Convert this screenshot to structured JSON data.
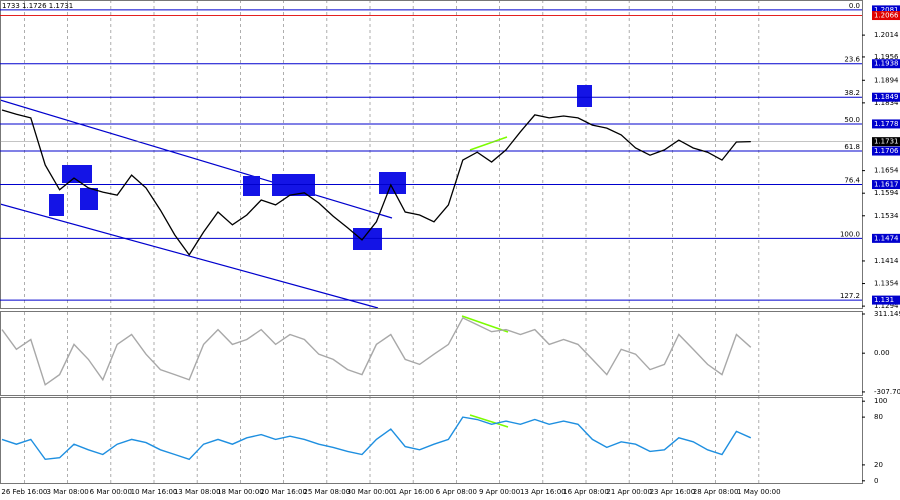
{
  "chart_data": [
    {
      "type": "line",
      "top_text": "1733 1.1726 1.1731",
      "color": "#000000",
      "categories": [
        null,
        "26 Feb 16:00",
        null,
        null,
        "3 Mar 08:00",
        null,
        null,
        "6 Mar 00:00",
        null,
        null,
        "10 Mar 16:00",
        null,
        null,
        "13 Mar 08:00",
        null,
        null,
        "18 Mar 00:00",
        null,
        null,
        "20 Mar 16:00",
        null,
        null,
        "25 Mar 08:00",
        null,
        null,
        "30 Mar 00:00",
        null,
        null,
        "1 Apr 16:00",
        null,
        null,
        "6 Apr 08:00",
        null,
        null,
        "9 Apr 00:00",
        null,
        null,
        "13 Apr 16:00",
        null,
        null,
        "16 Apr 08:00",
        null,
        null,
        "21 Apr 00:00",
        null,
        null,
        "23 Apr 16:00",
        null,
        null,
        "28 Apr 08:00",
        null,
        null,
        "1 May 00:00"
      ],
      "values": [
        1.1815,
        1.1804,
        1.1794,
        1.1669,
        1.1603,
        1.1634,
        1.1608,
        1.1597,
        1.1589,
        1.1642,
        1.1608,
        1.1549,
        1.1483,
        1.143,
        1.1491,
        1.1544,
        1.151,
        1.1536,
        1.1576,
        1.1563,
        1.1589,
        1.1595,
        1.1568,
        1.1533,
        1.1502,
        1.147,
        1.1518,
        1.1616,
        1.1544,
        1.1536,
        1.1518,
        1.1563,
        1.1682,
        1.1703,
        1.1677,
        1.1709,
        1.1757,
        1.1802,
        1.1794,
        1.1799,
        1.1794,
        1.1775,
        1.1767,
        1.1749,
        1.1714,
        1.1695,
        1.1709,
        1.1735,
        1.1714,
        1.1703,
        1.1682,
        1.173,
        1.1731
      ],
      "ylim": [
        1.1289,
        1.2094
      ],
      "yticks": [
        1.2014,
        1.1956,
        1.1894,
        1.1834,
        1.1654,
        1.1594,
        1.1534,
        1.1414,
        1.1354,
        1.1294
      ],
      "levels": [
        {
          "price": 1.2081,
          "label": "0.0"
        },
        {
          "price": 1.1938,
          "label": "23.6"
        },
        {
          "price": 1.1849,
          "label": "38.2"
        },
        {
          "price": 1.1778,
          "label": "50.0"
        },
        {
          "price": 1.1706,
          "label": "61.8"
        },
        {
          "price": 1.1617,
          "label": "76.4"
        },
        {
          "price": 1.1474,
          "label": "100.0"
        },
        {
          "price": 1.131,
          "label": "127.2"
        }
      ],
      "level_color": "#0000cd",
      "marker_price": 1.2066,
      "marker_color": "#e00000",
      "last_price": 1.1731
    },
    {
      "type": "line",
      "color": "#a8a8a8",
      "values": [
        187,
        31,
        109,
        -251,
        -170,
        70,
        -49,
        -211,
        70,
        148,
        -8,
        -130,
        -170,
        -211,
        70,
        187,
        70,
        109,
        187,
        70,
        148,
        109,
        -8,
        -49,
        -130,
        -170,
        70,
        148,
        -49,
        -89,
        -8,
        70,
        280,
        226,
        171,
        187,
        148,
        187,
        70,
        109,
        70,
        -49,
        -170,
        31,
        -8,
        -130,
        -89,
        148,
        31,
        -89,
        -170,
        148,
        47
      ],
      "ylim": [
        -340,
        335
      ],
      "yticks": [
        311.1497,
        {
          "value": 0,
          "label": "0.00"
        },
        -307.704
      ]
    },
    {
      "type": "line",
      "color": "#1e8fe0",
      "values": [
        52,
        46,
        52,
        27,
        29,
        46,
        39,
        33,
        46,
        52,
        48,
        39,
        33,
        27,
        46,
        52,
        46,
        54,
        58,
        52,
        56,
        52,
        46,
        42,
        37,
        33,
        52,
        65,
        43,
        39,
        46,
        52,
        80,
        77,
        71,
        75,
        71,
        77,
        71,
        75,
        71,
        52,
        42,
        49,
        46,
        37,
        39,
        54,
        49,
        39,
        33,
        62,
        54
      ],
      "ylim": [
        -4,
        104
      ],
      "yticks": [
        100,
        80,
        20,
        0
      ]
    }
  ]
}
